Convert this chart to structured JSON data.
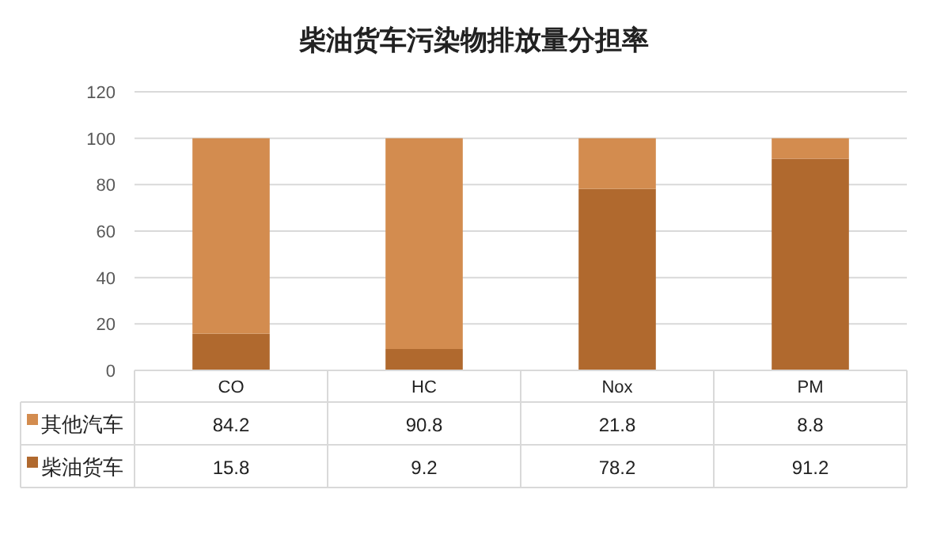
{
  "chart_data": {
    "type": "bar",
    "title": "柴油货车污染物排放量分担率",
    "categories": [
      "CO",
      "HC",
      "Nox",
      "PM"
    ],
    "stacked": true,
    "ylim": [
      0,
      120
    ],
    "yticks": [
      0,
      20,
      40,
      60,
      80,
      100,
      120
    ],
    "grid": "y",
    "legend": "left",
    "data_labels": true,
    "series": [
      {
        "name": "柴油货车",
        "color": "#b0692e",
        "values": [
          15.8,
          9.2,
          78.2,
          91.2
        ]
      },
      {
        "name": "其他汽车",
        "color": "#d38c4f",
        "values": [
          84.2,
          90.8,
          21.8,
          8.8
        ]
      }
    ]
  }
}
